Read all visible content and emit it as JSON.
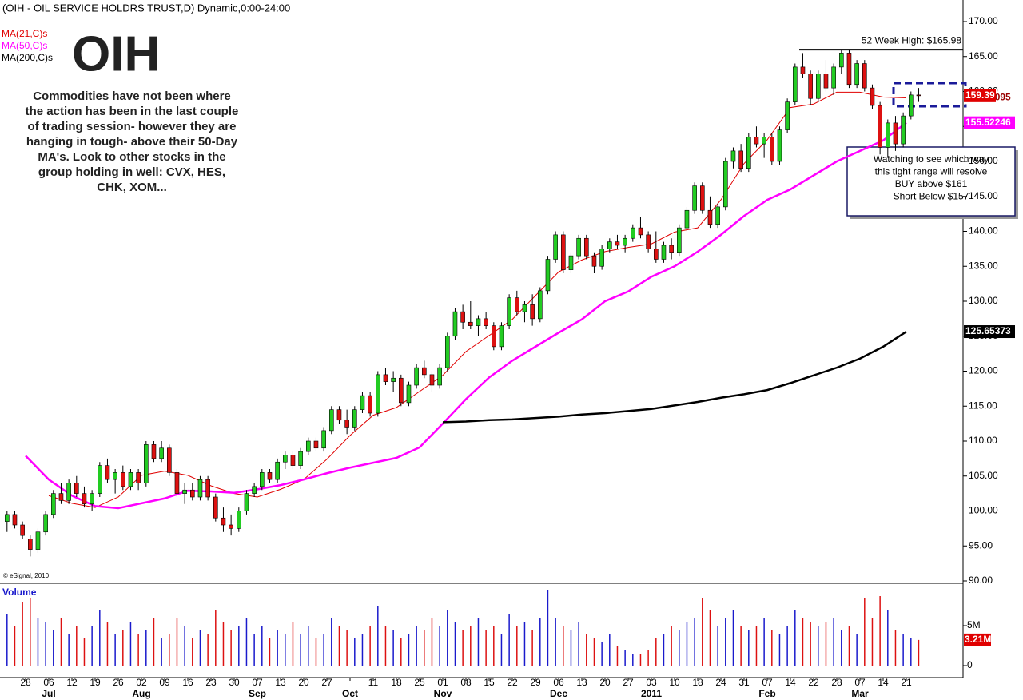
{
  "chart_data": {
    "type": "candlestick",
    "title": "(OIH - OIL SERVICE HOLDRS TRUST,D) Dynamic,0:00-24:00",
    "symbol": "OIH",
    "commentary": [
      "Commodities have not been where",
      "the action has been in the last couple",
      "of trading session- however they are",
      "hanging in tough- above their 50-Day",
      "MA's.  Look to other stocks in the",
      "group holding in well: CVX, HES,",
      "CHK, XOM..."
    ],
    "annotation": [
      "Watching to see which way",
      "this tight range will resolve",
      "BUY above $161",
      "Short Below $157"
    ],
    "copyright": "© eSignal, 2010",
    "volume_title": "Volume",
    "high52": {
      "value": 165.98,
      "label": "52 Week High: $165.98"
    },
    "categories": [
      "28",
      "06",
      "12",
      "19",
      "26",
      "02",
      "09",
      "16",
      "23",
      "30",
      "07",
      "13",
      "20",
      "27",
      null,
      "11",
      "18",
      "25",
      "01",
      "08",
      "15",
      "22",
      "29",
      "06",
      "13",
      "20",
      "27",
      "03",
      "10",
      "18",
      "24",
      "31",
      "07",
      "14",
      "22",
      "28",
      "07",
      "14",
      "21"
    ],
    "months": [
      null,
      "Jul",
      null,
      null,
      null,
      "Aug",
      null,
      null,
      null,
      null,
      "Sep",
      null,
      null,
      null,
      "Oct",
      null,
      null,
      null,
      "Nov",
      null,
      null,
      null,
      null,
      "Dec",
      null,
      null,
      null,
      "2011",
      null,
      null,
      null,
      null,
      "Feb",
      null,
      null,
      null,
      "Mar",
      null,
      null
    ],
    "candles": [
      [
        98.5,
        100,
        97,
        99.5
      ],
      [
        99.5,
        100,
        97.5,
        98
      ],
      [
        98,
        98.5,
        96,
        96.5
      ],
      [
        96,
        96.5,
        93.5,
        94.5
      ],
      [
        94.5,
        97.5,
        94,
        97
      ],
      [
        97,
        100,
        96.5,
        99.5
      ],
      [
        99.5,
        103,
        99,
        102.5
      ],
      [
        102.5,
        104,
        101,
        101.5
      ],
      [
        101.5,
        104.5,
        101,
        104
      ],
      [
        104,
        105,
        102,
        102.5
      ],
      [
        102.5,
        103.5,
        100.5,
        101
      ],
      [
        101,
        103,
        100,
        102.5
      ],
      [
        102.5,
        107,
        102,
        106.5
      ],
      [
        106.5,
        107.5,
        104,
        104.5
      ],
      [
        104.5,
        106,
        102.5,
        105.5
      ],
      [
        105.5,
        106.5,
        103,
        103.5
      ],
      [
        103.5,
        106,
        103,
        105.5
      ],
      [
        105.5,
        106,
        103,
        104
      ],
      [
        104,
        110,
        103.5,
        109.5
      ],
      [
        109.5,
        110,
        107,
        107.5
      ],
      [
        107.5,
        110,
        107,
        109
      ],
      [
        109,
        109.5,
        105,
        105.5
      ],
      [
        105.5,
        106,
        102,
        102.5
      ],
      [
        102.5,
        104,
        101,
        103
      ],
      [
        103,
        104,
        101.5,
        102
      ],
      [
        102,
        105,
        101.5,
        104.5
      ],
      [
        104.5,
        105,
        101.5,
        102
      ],
      [
        102,
        102.5,
        98.5,
        99
      ],
      [
        99,
        100.5,
        97,
        98
      ],
      [
        98,
        99.5,
        96.5,
        97.5
      ],
      [
        97.5,
        100.5,
        97,
        100
      ],
      [
        100,
        103,
        99.5,
        102.5
      ],
      [
        102.5,
        104,
        102,
        103.5
      ],
      [
        103.5,
        106,
        103,
        105.5
      ],
      [
        105.5,
        106,
        104,
        104.5
      ],
      [
        104.5,
        107.5,
        104,
        107
      ],
      [
        107,
        108.5,
        106,
        108
      ],
      [
        108,
        108.5,
        106,
        106.5
      ],
      [
        106.5,
        109,
        106,
        108.5
      ],
      [
        108.5,
        110.5,
        108,
        110
      ],
      [
        110,
        110.5,
        108.5,
        109
      ],
      [
        109,
        112,
        108.5,
        111.5
      ],
      [
        111.5,
        115,
        111,
        114.5
      ],
      [
        114.5,
        115,
        112.5,
        113
      ],
      [
        113,
        114.5,
        111,
        112
      ],
      [
        112,
        115,
        111.5,
        114.5
      ],
      [
        114.5,
        117,
        114,
        116.5
      ],
      [
        116.5,
        117,
        113.5,
        114
      ],
      [
        114,
        120,
        113.5,
        119.5
      ],
      [
        119.5,
        120.5,
        118,
        118.5
      ],
      [
        118.5,
        120,
        117,
        119
      ],
      [
        119,
        119.5,
        115,
        115.5
      ],
      [
        115.5,
        118.5,
        115,
        118
      ],
      [
        118,
        121,
        117.5,
        120.5
      ],
      [
        120.5,
        121.5,
        119,
        119.5
      ],
      [
        119.5,
        120,
        117,
        118
      ],
      [
        118,
        121,
        117.5,
        120.5
      ],
      [
        120.5,
        125.5,
        120,
        125
      ],
      [
        125,
        129,
        124.5,
        128.5
      ],
      [
        128.5,
        129.5,
        126,
        127
      ],
      [
        127,
        130,
        126,
        126.5
      ],
      [
        126.5,
        128,
        125,
        127.5
      ],
      [
        127.5,
        128.5,
        126,
        126.5
      ],
      [
        126.5,
        127,
        123,
        123.5
      ],
      [
        123.5,
        127,
        123,
        126.5
      ],
      [
        126.5,
        131,
        126,
        130.5
      ],
      [
        130.5,
        131.5,
        128,
        128.5
      ],
      [
        128.5,
        130,
        127,
        129.5
      ],
      [
        129.5,
        131,
        126.5,
        127.5
      ],
      [
        127.5,
        132,
        127,
        131.5
      ],
      [
        131.5,
        136.5,
        131,
        136
      ],
      [
        136,
        140,
        135.5,
        139.5
      ],
      [
        139.5,
        140,
        134,
        134.5
      ],
      [
        134.5,
        137,
        134,
        136.5
      ],
      [
        136.5,
        139.5,
        136,
        139
      ],
      [
        139,
        139.5,
        136,
        136.5
      ],
      [
        136.5,
        137,
        134,
        135
      ],
      [
        135,
        138,
        134.5,
        137.5
      ],
      [
        137.5,
        139,
        137,
        138.5
      ],
      [
        138.5,
        139.5,
        137.5,
        138
      ],
      [
        138,
        139.5,
        137,
        139
      ],
      [
        139,
        141,
        138.5,
        140.5
      ],
      [
        140.5,
        142,
        139,
        139.5
      ],
      [
        139.5,
        140,
        137,
        137.5
      ],
      [
        137.5,
        140,
        135.5,
        136
      ],
      [
        136,
        138.5,
        135.5,
        138
      ],
      [
        138,
        139,
        136,
        137
      ],
      [
        137,
        141,
        136.5,
        140.5
      ],
      [
        140.5,
        143.5,
        140,
        143
      ],
      [
        143,
        147,
        142.5,
        146.5
      ],
      [
        146.5,
        147,
        142.5,
        143
      ],
      [
        143,
        145,
        140.5,
        141
      ],
      [
        141,
        144,
        140.5,
        143.5
      ],
      [
        143.5,
        150.5,
        143,
        150
      ],
      [
        150,
        152,
        149,
        151.5
      ],
      [
        151.5,
        152.5,
        148.5,
        149
      ],
      [
        149,
        154,
        148.5,
        153.5
      ],
      [
        153.5,
        155,
        152,
        152.5
      ],
      [
        152.5,
        154,
        150.5,
        153.5
      ],
      [
        153.5,
        154,
        149.5,
        150
      ],
      [
        150,
        155,
        149.5,
        154.5
      ],
      [
        154.5,
        159,
        154,
        158.5
      ],
      [
        158.5,
        164,
        158,
        163.5
      ],
      [
        163.5,
        165.5,
        162,
        162.5
      ],
      [
        162.5,
        163,
        158,
        159
      ],
      [
        159,
        163,
        158.5,
        162.5
      ],
      [
        162.5,
        164.5,
        160,
        160.5
      ],
      [
        160.5,
        164,
        159.5,
        163.5
      ],
      [
        163.5,
        165.98,
        162.5,
        165.5
      ],
      [
        165.5,
        166,
        160.5,
        161
      ],
      [
        161,
        164.5,
        160.5,
        164
      ],
      [
        164,
        164.5,
        160,
        160.5
      ],
      [
        160.5,
        161,
        157.5,
        158
      ],
      [
        158,
        158.5,
        151,
        152
      ],
      [
        152,
        156,
        150.5,
        155.5
      ],
      [
        155.5,
        156.5,
        151.5,
        152.5
      ],
      [
        152.5,
        157,
        152,
        156.5
      ],
      [
        156.5,
        160,
        156,
        159.5
      ],
      [
        159.5,
        160.5,
        158.5,
        159.39
      ]
    ],
    "series": [
      {
        "name": "MA(21,C)s",
        "color": "#e00000",
        "values": [
          null,
          102.2,
          101.1,
          100.5,
          102,
          105.1,
          105.7,
          105.1,
          103.6,
          102.5,
          102,
          103.1,
          104.5,
          107.4,
          110.8,
          113.7,
          114.8,
          117.1,
          119.4,
          122.8,
          125.1,
          127.4,
          130.8,
          134.2,
          135.9,
          137.1,
          137.7,
          138.2,
          139.9,
          140.5,
          144.5,
          149.7,
          153.1,
          157.7,
          158.2,
          159.9,
          159.9,
          159.2,
          159.09095
        ]
      },
      {
        "name": "MA(50,C)s",
        "color": "#ff00ff",
        "values": [
          107.9,
          104.5,
          102.2,
          100.7,
          100.4,
          101.1,
          101.8,
          102.9,
          102.8,
          102.6,
          103.1,
          103.7,
          104.5,
          105.4,
          106.2,
          106.9,
          107.6,
          109.1,
          112.5,
          116,
          119.1,
          121.5,
          123.5,
          125.5,
          127.4,
          130,
          131.4,
          133.5,
          135,
          137.1,
          139.5,
          142.2,
          144.5,
          146,
          148,
          150,
          151.5,
          153,
          155.52246
        ]
      },
      {
        "name": "MA(200,C)s",
        "color": "#000000",
        "values": [
          null,
          null,
          null,
          null,
          null,
          null,
          null,
          null,
          null,
          null,
          null,
          null,
          null,
          null,
          null,
          null,
          null,
          null,
          112.7,
          112.8,
          113,
          113.1,
          113.3,
          113.5,
          113.8,
          114,
          114.3,
          114.6,
          115.1,
          115.6,
          116.2,
          116.7,
          117.3,
          118.3,
          119.4,
          120.5,
          121.8,
          123.5,
          125.65373
        ]
      }
    ],
    "volume": [
      6.5,
      5,
      8,
      8.5,
      6,
      5.5,
      4.5,
      6,
      4,
      5,
      3.5,
      5,
      7,
      5.5,
      4,
      4.5,
      5.5,
      4,
      4.5,
      6,
      3.5,
      4,
      6,
      5,
      3.5,
      4.5,
      4,
      7,
      5.5,
      4.5,
      5,
      6,
      4,
      5,
      3.5,
      4.5,
      4,
      5.5,
      4,
      5,
      3.5,
      4,
      6,
      5,
      4.5,
      3.5,
      4,
      5,
      7.5,
      5,
      4.5,
      3.5,
      4,
      5,
      4.5,
      6,
      5,
      7,
      5.5,
      4.5,
      5,
      6,
      4.5,
      5,
      4,
      6.5,
      5,
      5.5,
      4.5,
      6,
      9.5,
      6,
      5,
      4.5,
      5.5,
      4,
      3.5,
      3,
      4,
      2.5,
      2,
      1.5,
      1.5,
      2,
      3.5,
      4,
      5,
      4.5,
      5.5,
      6,
      8.5,
      7,
      5,
      6,
      7,
      5,
      4.5,
      5,
      6,
      4.5,
      4,
      5,
      7,
      6,
      5.5,
      5,
      5.5,
      6,
      4.5,
      5,
      4,
      8.5,
      6,
      8.7,
      7,
      4.5,
      4,
      3.5,
      3.21
    ],
    "volume_labels": {
      "118": "3.21M"
    },
    "ylim": [
      90,
      170
    ],
    "yticks": [
      {
        "value": 90,
        "label": "90.00"
      },
      {
        "value": 95,
        "label": "95.00"
      },
      {
        "value": 100,
        "label": "100.00"
      },
      {
        "value": 105,
        "label": "105.00"
      },
      {
        "value": 110,
        "label": "110.00"
      },
      {
        "value": 115,
        "label": "115.00"
      },
      {
        "value": 120,
        "label": "120.00"
      },
      {
        "value": 125,
        "label": "125.00"
      },
      {
        "value": 130,
        "label": "130.00"
      },
      {
        "value": 135,
        "label": "135.00"
      },
      {
        "value": 140,
        "label": "140.00"
      },
      {
        "value": 145,
        "label": "145.00"
      },
      {
        "value": 150,
        "label": "150.00"
      },
      {
        "value": 155,
        "label": "155.00"
      },
      {
        "value": 160,
        "label": "160.00"
      },
      {
        "value": 165,
        "label": "165.00"
      },
      {
        "value": 170,
        "label": "170.00"
      }
    ],
    "y2lim": [
      0,
      10
    ],
    "y2ticks": [
      {
        "value": 5,
        "label": "5M"
      },
      0
    ],
    "grid": false,
    "up_color": "#22cc22",
    "down_color": "#dd1111",
    "volume_up_color": "#1a1acc",
    "volume_down_color": "#dd1111"
  }
}
